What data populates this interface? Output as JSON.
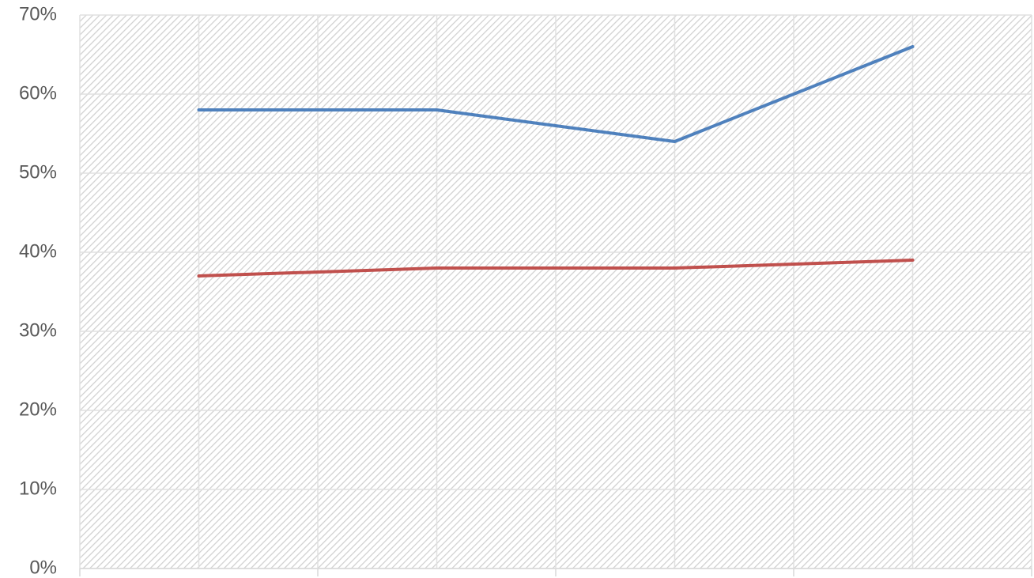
{
  "chart_data": {
    "type": "line",
    "categories": [
      null,
      null,
      null,
      null
    ],
    "series": [
      {
        "color": "#4f81bd",
        "values": [
          58,
          58,
          54,
          66
        ]
      },
      {
        "color": "#c0504d",
        "values": [
          37,
          38,
          38,
          39
        ]
      }
    ],
    "ylim": [
      0,
      70
    ],
    "yticks": [
      {
        "value": 0,
        "label": "0%"
      },
      {
        "value": 10,
        "label": "10%"
      },
      {
        "value": 20,
        "label": "20%"
      },
      {
        "value": 30,
        "label": "30%"
      },
      {
        "value": 40,
        "label": "40%"
      },
      {
        "value": 50,
        "label": "50%"
      },
      {
        "value": 60,
        "label": "60%"
      },
      {
        "value": 70,
        "label": "70%"
      }
    ],
    "grid": true
  }
}
